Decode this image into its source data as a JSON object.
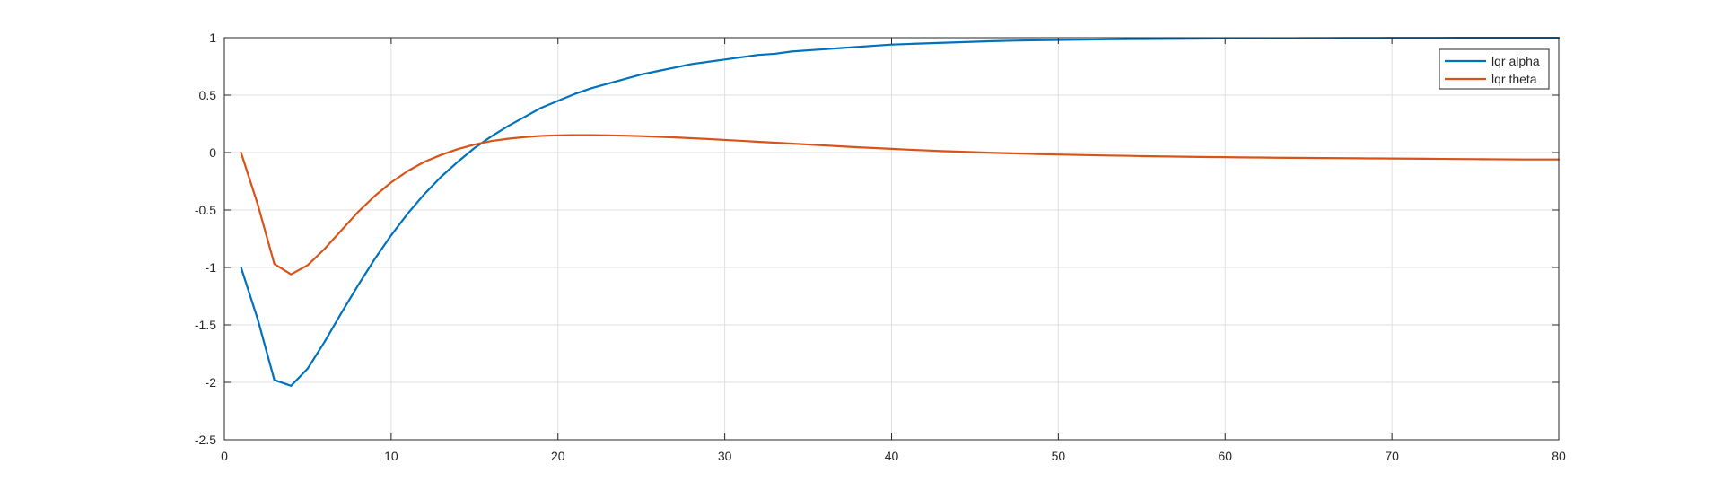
{
  "chart_data": {
    "type": "line",
    "title": "",
    "xlabel": "",
    "ylabel": "",
    "xlim": [
      0,
      80
    ],
    "ylim": [
      -2.5,
      1
    ],
    "xticks": [
      0,
      10,
      20,
      30,
      40,
      50,
      60,
      70,
      80
    ],
    "yticks": [
      -2.5,
      -2,
      -1.5,
      -1,
      -0.5,
      0,
      0.5,
      1
    ],
    "xtick_labels": [
      "0",
      "10",
      "20",
      "30",
      "40",
      "50",
      "60",
      "70",
      "80"
    ],
    "ytick_labels": [
      "-2.5",
      "-2",
      "-1.5",
      "-1",
      "-0.5",
      "0",
      "0.5",
      "1"
    ],
    "grid": true,
    "legend_position": "top-right",
    "x": [
      1,
      2,
      3,
      4,
      5,
      6,
      7,
      8,
      9,
      10,
      11,
      12,
      13,
      14,
      15,
      16,
      17,
      18,
      19,
      20,
      21,
      22,
      23,
      24,
      25,
      26,
      27,
      28,
      29,
      30,
      31,
      32,
      33,
      34,
      35,
      36,
      37,
      38,
      39,
      40,
      41,
      42,
      43,
      44,
      45,
      46,
      47,
      48,
      49,
      50,
      51,
      52,
      53,
      54,
      55,
      56,
      57,
      58,
      59,
      60,
      61,
      62,
      63,
      64,
      65,
      66,
      67,
      68,
      69,
      70,
      71,
      72,
      73,
      74,
      75,
      76,
      77,
      78,
      79,
      80
    ],
    "series": [
      {
        "name": "lqr alpha",
        "color": "#0072bd",
        "values": [
          -1.0,
          -1.45,
          -1.98,
          -2.03,
          -1.88,
          -1.65,
          -1.4,
          -1.16,
          -0.93,
          -0.72,
          -0.53,
          -0.36,
          -0.21,
          -0.08,
          0.04,
          0.14,
          0.23,
          0.31,
          0.39,
          0.45,
          0.51,
          0.56,
          0.6,
          0.64,
          0.68,
          0.71,
          0.74,
          0.77,
          0.79,
          0.81,
          0.83,
          0.85,
          0.86,
          0.88,
          0.89,
          0.9,
          0.91,
          0.92,
          0.93,
          0.94,
          0.945,
          0.95,
          0.955,
          0.96,
          0.965,
          0.97,
          0.973,
          0.976,
          0.978,
          0.98,
          0.982,
          0.984,
          0.986,
          0.987,
          0.988,
          0.989,
          0.99,
          0.991,
          0.992,
          0.993,
          0.994,
          0.994,
          0.995,
          0.995,
          0.996,
          0.996,
          0.997,
          0.997,
          0.997,
          0.998,
          0.998,
          0.998,
          0.998,
          0.999,
          0.999,
          0.999,
          0.999,
          0.999,
          0.999,
          0.999
        ]
      },
      {
        "name": "lqr theta",
        "color": "#d95319",
        "values": [
          0.0,
          -0.45,
          -0.97,
          -1.06,
          -0.98,
          -0.84,
          -0.68,
          -0.52,
          -0.38,
          -0.26,
          -0.16,
          -0.08,
          -0.02,
          0.03,
          0.07,
          0.1,
          0.12,
          0.135,
          0.145,
          0.15,
          0.152,
          0.152,
          0.15,
          0.147,
          0.143,
          0.138,
          0.132,
          0.125,
          0.118,
          0.11,
          0.102,
          0.094,
          0.086,
          0.078,
          0.07,
          0.062,
          0.054,
          0.046,
          0.039,
          0.032,
          0.025,
          0.019,
          0.013,
          0.008,
          0.003,
          -0.002,
          -0.006,
          -0.01,
          -0.014,
          -0.017,
          -0.02,
          -0.023,
          -0.026,
          -0.028,
          -0.031,
          -0.033,
          -0.035,
          -0.037,
          -0.039,
          -0.04,
          -0.042,
          -0.043,
          -0.045,
          -0.046,
          -0.047,
          -0.048,
          -0.049,
          -0.05,
          -0.051,
          -0.052,
          -0.053,
          -0.054,
          -0.055,
          -0.056,
          -0.057,
          -0.058,
          -0.059,
          -0.06,
          -0.06,
          -0.06
        ]
      }
    ]
  },
  "colors": {
    "axis": "#262626",
    "grid": "#dfdfdf",
    "background": "#ffffff"
  }
}
